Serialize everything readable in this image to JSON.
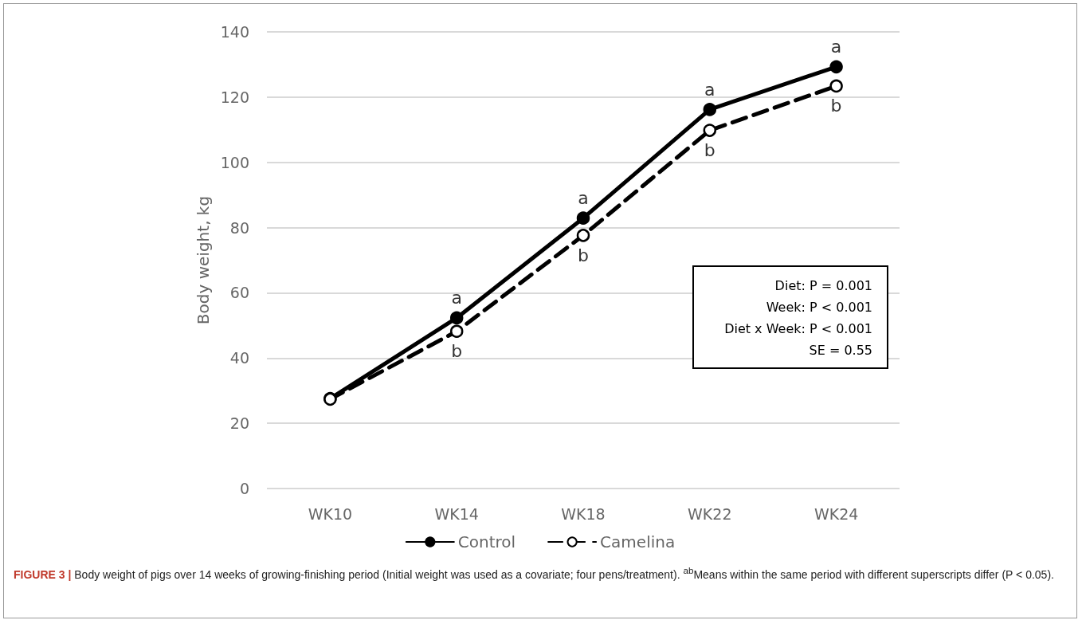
{
  "chart_data": {
    "type": "line",
    "ylabel": "Body weight, kg",
    "categories": [
      "WK10",
      "WK14",
      "WK18",
      "WK22",
      "WK24"
    ],
    "series": [
      {
        "name": "Control",
        "color": "#000000",
        "line_style": "solid",
        "values": [
          27.6,
          52.3,
          82.9,
          116.2,
          129.3
        ]
      },
      {
        "name": "Camelina",
        "color": "#000000",
        "line_style": "dashed",
        "values": [
          27.4,
          48.2,
          77.6,
          109.8,
          123.4
        ]
      }
    ],
    "marker": "circle",
    "ylim": [
      0,
      140
    ],
    "yticks": [
      0,
      20,
      40,
      60,
      80,
      100,
      120,
      140
    ],
    "grid": "y",
    "legend": "bottom",
    "annotations": [
      {
        "text": "a",
        "x": "WK14",
        "y": 52.3
      },
      {
        "text": "b",
        "x": "WK14",
        "y": 48.2
      },
      {
        "text": "a",
        "x": "WK18",
        "y": 82.9
      },
      {
        "text": "b",
        "x": "WK18",
        "y": 77.6
      },
      {
        "text": "a",
        "x": "WK22",
        "y": 116.2
      },
      {
        "text": "b",
        "x": "WK22",
        "y": 109.8
      },
      {
        "text": "a",
        "x": "WK24",
        "y": 129.3
      },
      {
        "text": "b",
        "x": "WK24",
        "y": 123.4
      },
      "Diet: P = 0.001",
      "Week: P < 0.001",
      "Diet x Week: P < 0.001",
      "SE = 0.55",
      "FIGURE 3 | Body weight of pigs over 14 weeks of growing-finishing period (Initial weight was used as a covariate; four pens/treatment). $^{ab}$Means within the same period with different superscripts differ (P < 0.05)."
    ]
  }
}
